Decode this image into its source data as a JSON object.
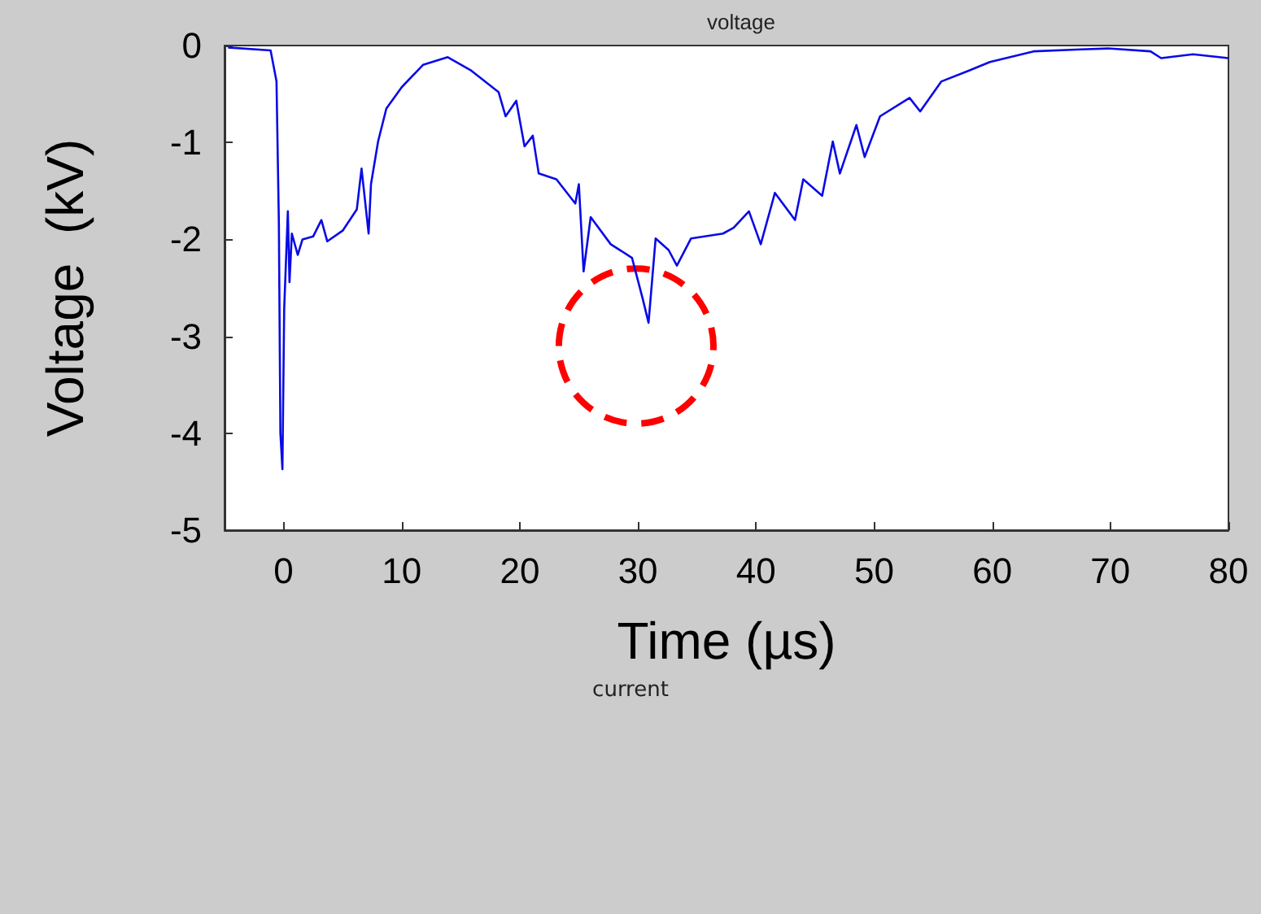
{
  "chart_data": {
    "type": "line",
    "title": "voltage",
    "xlabel": "Time (µs)",
    "ylabel": "Voltage  (kV)",
    "annotations": [
      "current"
    ],
    "xlim": [
      -5,
      80
    ],
    "xticks": [
      0,
      10,
      20,
      30,
      40,
      50,
      60,
      70,
      80
    ],
    "ylim": [
      -5,
      0
    ],
    "yticks": [
      0,
      -1,
      -2,
      -3,
      -4,
      -5
    ],
    "grid": false,
    "marker": "none",
    "line_style": "solid",
    "x": [
      -4.7,
      -1.1,
      -0.6,
      -0.4,
      -0.27,
      -0.1,
      0.05,
      0.36,
      0.5,
      0.7,
      1.2,
      1.6,
      2.5,
      3.2,
      3.7,
      5.0,
      6.2,
      6.6,
      7.2,
      7.4,
      8.0,
      8.7,
      10.0,
      11.8,
      13.9,
      15.9,
      18.2,
      18.8,
      19.7,
      20.4,
      21.1,
      21.6,
      23.1,
      24.7,
      25.0,
      25.4,
      26.0,
      27.7,
      29.5,
      30.4,
      30.9,
      31.5,
      32.6,
      33.3,
      34.5,
      37.2,
      38.1,
      39.4,
      40.4,
      41.6,
      43.3,
      44.0,
      45.6,
      46.5,
      47.1,
      48.5,
      49.2,
      50.5,
      53.0,
      53.9,
      55.7,
      58.0,
      59.8,
      63.5,
      67.5,
      69.8,
      73.4,
      74.3,
      77.0,
      80
    ],
    "series": [
      {
        "color": "#0a0ae6",
        "values": [
          -0.02,
          -0.05,
          -0.37,
          -1.83,
          -4.0,
          -4.37,
          -2.72,
          -1.71,
          -2.44,
          -1.94,
          -2.16,
          -2.0,
          -1.97,
          -1.8,
          -2.02,
          -1.91,
          -1.69,
          -1.27,
          -1.94,
          -1.43,
          -0.99,
          -0.65,
          -0.43,
          -0.2,
          -0.12,
          -0.26,
          -0.48,
          -0.73,
          -0.57,
          -1.04,
          -0.93,
          -1.32,
          -1.38,
          -1.63,
          -1.43,
          -2.33,
          -1.77,
          -2.05,
          -2.19,
          -2.61,
          -2.86,
          -1.99,
          -2.11,
          -2.27,
          -1.99,
          -1.94,
          -1.88,
          -1.71,
          -2.05,
          -1.52,
          -1.8,
          -1.38,
          -1.55,
          -0.99,
          -1.32,
          -0.82,
          -1.15,
          -0.73,
          -0.54,
          -0.68,
          -0.37,
          -0.26,
          -0.17,
          -0.06,
          -0.04,
          -0.03,
          -0.06,
          -0.13,
          -0.09,
          -0.13
        ]
      }
    ]
  }
}
